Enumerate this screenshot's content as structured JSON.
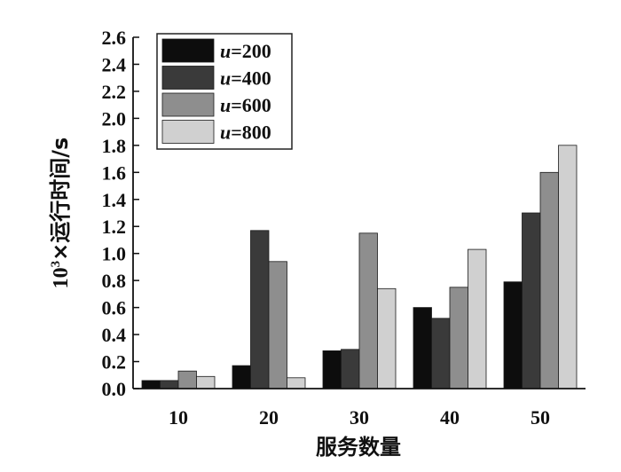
{
  "chart_data": {
    "type": "bar",
    "categories": [
      "10",
      "20",
      "30",
      "40",
      "50"
    ],
    "series": [
      {
        "name_var": "u",
        "name_value": "=200",
        "values": [
          0.06,
          0.17,
          0.28,
          0.6,
          0.79
        ]
      },
      {
        "name_var": "u",
        "name_value": "=400",
        "values": [
          0.06,
          1.17,
          0.29,
          0.52,
          1.3
        ]
      },
      {
        "name_var": "u",
        "name_value": "=600",
        "values": [
          0.13,
          0.94,
          1.15,
          0.75,
          1.6
        ]
      },
      {
        "name_var": "u",
        "name_value": "=800",
        "values": [
          0.09,
          0.08,
          0.74,
          1.03,
          1.8
        ]
      }
    ],
    "colors": [
      "#0d0d0d",
      "#3a3a3a",
      "#8e8e8e",
      "#d0d0d0"
    ],
    "xlabel": "服务数量",
    "ylabel_prefix": "10",
    "ylabel_exp": "3",
    "ylabel_rest": "×运行时间/s",
    "ylim": [
      0,
      2.6
    ],
    "yticks": [
      "0.0",
      "0.2",
      "0.4",
      "0.6",
      "0.8",
      "1.0",
      "1.2",
      "1.4",
      "1.6",
      "1.8",
      "2.0",
      "2.2",
      "2.4",
      "2.6"
    ],
    "legend_position": "top-left",
    "grid": false
  }
}
